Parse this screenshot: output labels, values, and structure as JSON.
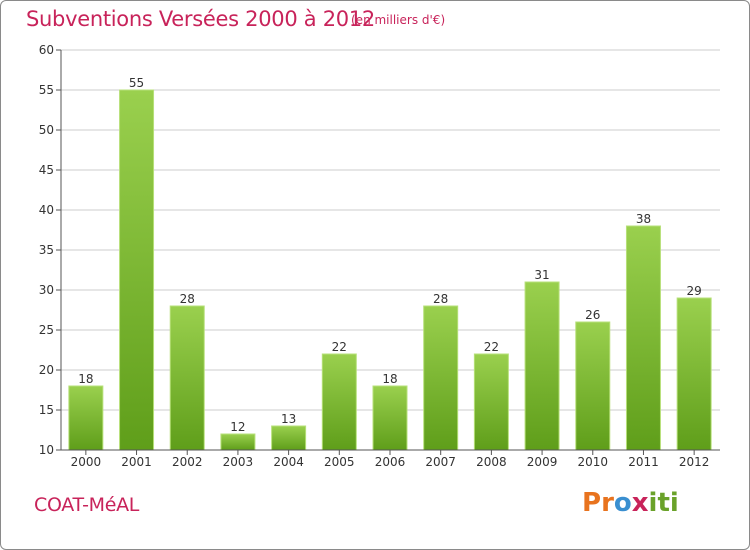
{
  "title": "Subventions Versées 2000 à 2012",
  "subtitle": "(en milliers d'€)",
  "commune": "COAT-MéAL",
  "logo": {
    "letters": [
      "P",
      "r",
      "o",
      "x",
      "i",
      "t",
      "i"
    ],
    "colors": [
      "#e8731e",
      "#e8731e",
      "#3a8fd0",
      "#c8235a",
      "#6aa22a",
      "#6aa22a",
      "#6aa22a"
    ]
  },
  "colors": {
    "accent": "#c8235a",
    "bar_top": "#9ad04e",
    "bar_bottom": "#5f9e1a",
    "axis": "#555555",
    "grid": "#cccccc"
  },
  "chart_data": {
    "type": "bar",
    "categories": [
      "2000",
      "2001",
      "2002",
      "2003",
      "2004",
      "2005",
      "2006",
      "2007",
      "2008",
      "2009",
      "2010",
      "2011",
      "2012"
    ],
    "values": [
      18,
      55,
      28,
      12,
      13,
      22,
      18,
      28,
      22,
      31,
      26,
      38,
      29
    ],
    "ylim": [
      10,
      60
    ],
    "yticks": [
      10,
      15,
      20,
      25,
      30,
      35,
      40,
      45,
      50,
      55,
      60
    ],
    "title": "Subventions Versées 2000 à 2012",
    "xlabel": "",
    "ylabel": ""
  }
}
